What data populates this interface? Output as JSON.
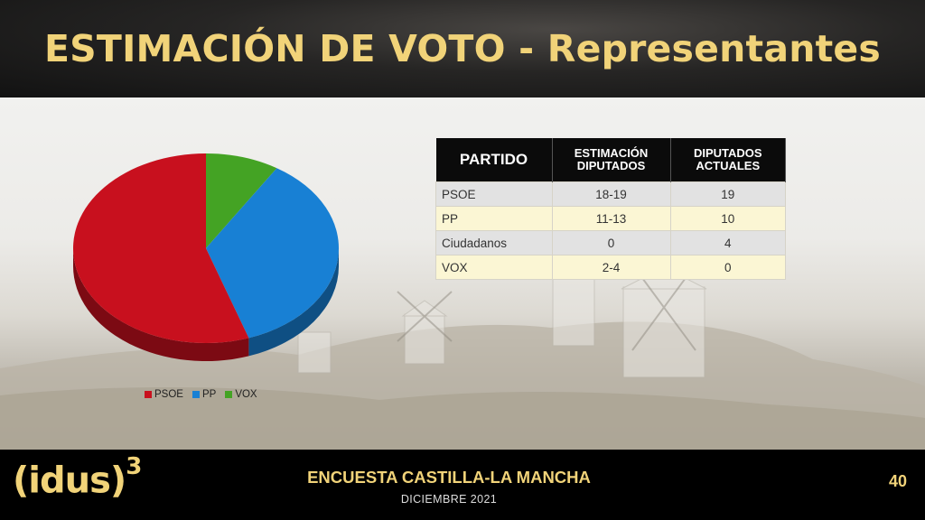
{
  "header": {
    "title": "ESTIMACIÓN DE VOTO - Representantes"
  },
  "colors": {
    "psoe": "#c8101e",
    "pp": "#1880d4",
    "vox": "#44a324",
    "gold": "#f1d379"
  },
  "chart_data": {
    "type": "pie",
    "title": "",
    "legend_position": "bottom",
    "categories": [
      "PSOE",
      "PP",
      "VOX"
    ],
    "values": [
      18.5,
      12,
      3
    ],
    "colors": [
      "#c8101e",
      "#1880d4",
      "#44a324"
    ]
  },
  "table": {
    "headers": {
      "party": "PARTIDO",
      "estimate": "ESTIMACIÓN DIPUTADOS",
      "current": "DIPUTADOS ACTUALES"
    },
    "rows": [
      {
        "party": "PSOE",
        "estimate": "18-19",
        "current": "19"
      },
      {
        "party": "PP",
        "estimate": "11-13",
        "current": "10"
      },
      {
        "party": "Ciudadanos",
        "estimate": "0",
        "current": "4"
      },
      {
        "party": "VOX",
        "estimate": "2-4",
        "current": "0"
      }
    ]
  },
  "footer": {
    "logo_text": "(idus)",
    "logo_sup": "3",
    "title": "ENCUESTA CASTILLA-LA MANCHA",
    "date": "DICIEMBRE 2021",
    "page_number": "40"
  }
}
